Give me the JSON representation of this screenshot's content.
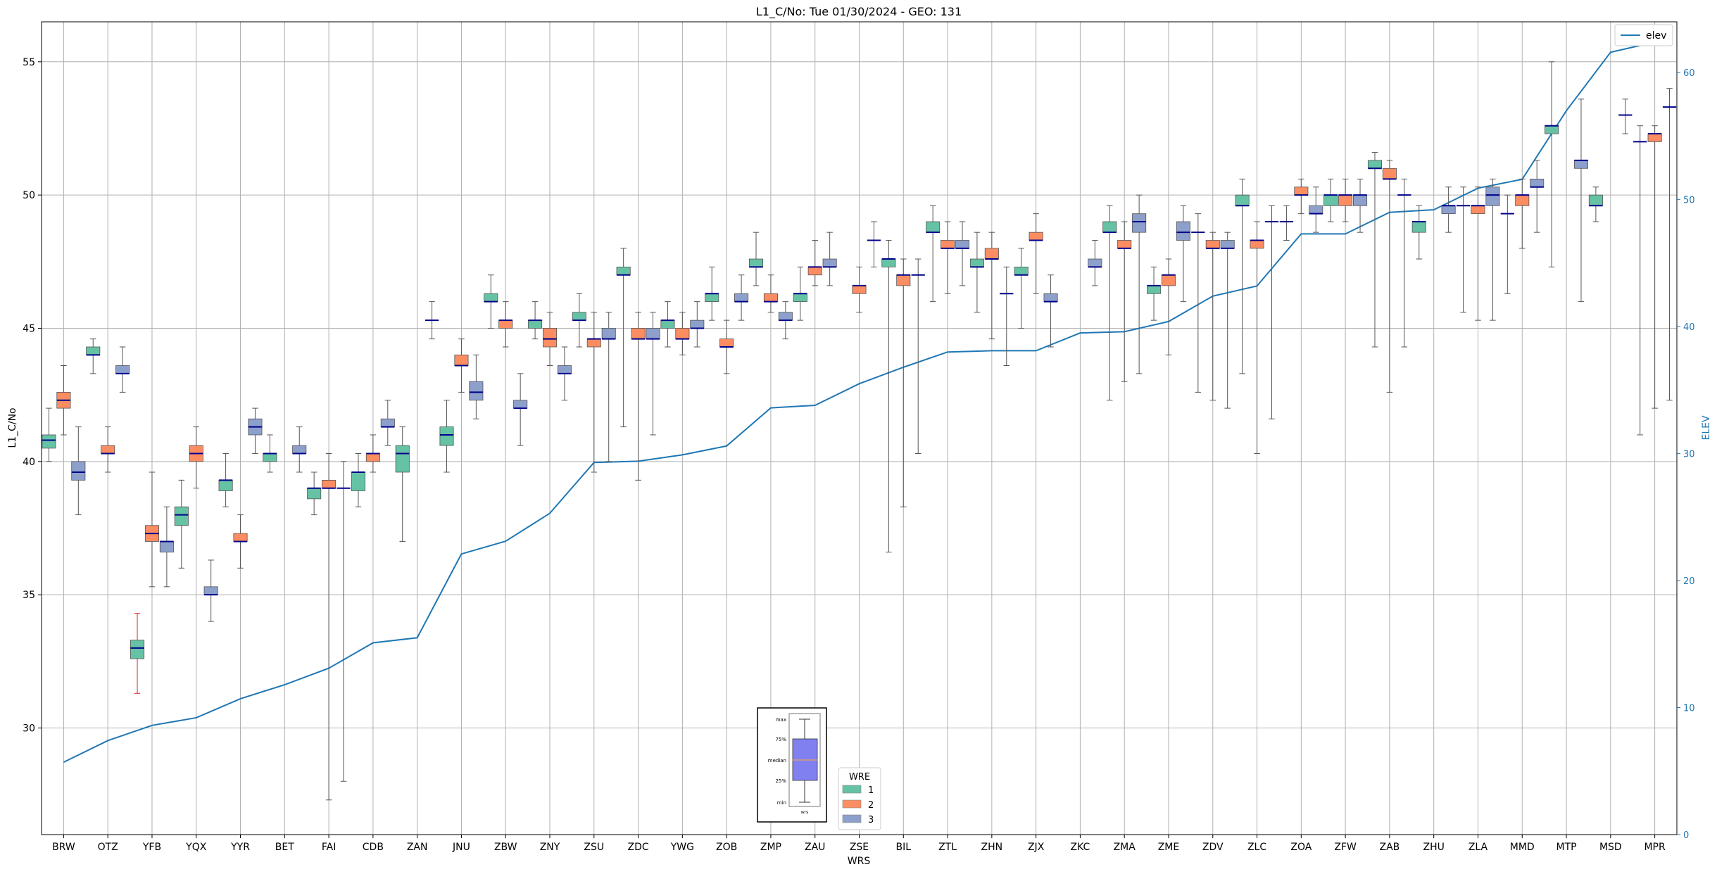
{
  "chart_data": {
    "type": "box",
    "title": "L1_C/No: Tue 01/30/2024 - GEO: 131",
    "xlabel": "WRS",
    "ylabel": "L1_C/No",
    "y2label": "ELEV",
    "ylim": [
      26.0,
      56.5
    ],
    "y2lim": [
      0,
      64
    ],
    "yticks": [
      30,
      35,
      40,
      45,
      50,
      55
    ],
    "y2ticks": [
      0,
      10,
      20,
      30,
      40,
      50,
      60
    ],
    "grid": true,
    "categories": [
      "BRW",
      "OTZ",
      "YFB",
      "YQX",
      "YYR",
      "BET",
      "FAI",
      "CDB",
      "ZAN",
      "JNU",
      "ZBW",
      "ZNY",
      "ZSU",
      "ZDC",
      "YWG",
      "ZOB",
      "ZMP",
      "ZAU",
      "ZSE",
      "BIL",
      "ZTL",
      "ZHN",
      "ZJX",
      "ZKC",
      "ZMA",
      "ZME",
      "ZDV",
      "ZLC",
      "ZOA",
      "ZFW",
      "ZAB",
      "ZHU",
      "ZLA",
      "MMD",
      "MTP",
      "MSD",
      "MPR"
    ],
    "series": [
      {
        "name": "1",
        "color": "#66c2a5",
        "boxes": [
          [
            40.0,
            40.5,
            40.8,
            41.0,
            42.0
          ],
          [
            43.3,
            44.0,
            44.0,
            44.3,
            44.6
          ],
          [
            31.3,
            32.6,
            33.0,
            33.3,
            34.3
          ],
          [
            36.0,
            37.6,
            38.0,
            38.3,
            39.3
          ],
          [
            38.3,
            38.9,
            39.3,
            39.3,
            40.3
          ],
          [
            39.6,
            40.0,
            40.3,
            40.3,
            41.0
          ],
          [
            38.0,
            38.6,
            39.0,
            39.0,
            39.6
          ],
          [
            38.3,
            38.9,
            39.6,
            39.6,
            40.3
          ],
          [
            37.0,
            39.6,
            40.3,
            40.6,
            41.3
          ],
          [
            39.6,
            40.6,
            41.0,
            41.3,
            42.3
          ],
          [
            45.0,
            46.0,
            46.0,
            46.3,
            47.0
          ],
          [
            44.6,
            45.0,
            45.3,
            45.3,
            46.0
          ],
          [
            44.3,
            45.3,
            45.3,
            45.6,
            46.3
          ],
          [
            41.3,
            47.0,
            47.0,
            47.3,
            48.0
          ],
          [
            44.3,
            45.0,
            45.3,
            45.3,
            46.0
          ],
          [
            45.3,
            46.0,
            46.3,
            46.3,
            47.3
          ],
          [
            46.6,
            47.3,
            47.3,
            47.6,
            48.6
          ],
          [
            45.3,
            46.0,
            46.3,
            46.3,
            47.3
          ],
          null,
          [
            36.6,
            47.3,
            47.6,
            47.6,
            48.3
          ],
          [
            46.0,
            48.6,
            48.6,
            49.0,
            49.6
          ],
          [
            45.6,
            47.3,
            47.3,
            47.6,
            48.6
          ],
          [
            45.0,
            47.0,
            47.0,
            47.3,
            48.0
          ],
          null,
          [
            42.3,
            48.6,
            48.6,
            49.0,
            49.6
          ],
          [
            45.3,
            46.3,
            46.6,
            46.6,
            47.3
          ],
          [
            42.6,
            48.6,
            48.6,
            48.6,
            49.3
          ],
          [
            43.3,
            49.6,
            49.6,
            50.0,
            50.6
          ],
          [
            48.3,
            49.0,
            49.0,
            49.0,
            49.6
          ],
          [
            49.0,
            49.6,
            50.0,
            50.0,
            50.6
          ],
          [
            44.3,
            51.0,
            51.0,
            51.3,
            51.6
          ],
          [
            47.6,
            48.6,
            49.0,
            49.0,
            49.6
          ],
          [
            45.6,
            49.6,
            49.6,
            49.6,
            50.3
          ],
          [
            46.3,
            49.3,
            49.3,
            49.3,
            50.0
          ],
          [
            47.3,
            52.3,
            52.6,
            52.6,
            55.0
          ],
          [
            49.0,
            49.6,
            49.6,
            50.0,
            50.3
          ],
          [
            41.0,
            52.0,
            52.0,
            52.0,
            52.6
          ]
        ]
      },
      {
        "name": "2",
        "color": "#fc8d62",
        "boxes": [
          [
            41.0,
            42.0,
            42.3,
            42.6,
            43.6
          ],
          [
            39.6,
            40.3,
            40.3,
            40.6,
            41.3
          ],
          [
            35.3,
            37.0,
            37.3,
            37.6,
            39.6
          ],
          [
            39.0,
            40.0,
            40.3,
            40.6,
            41.3
          ],
          [
            36.0,
            37.0,
            37.0,
            37.3,
            38.0
          ],
          null,
          [
            27.3,
            39.0,
            39.0,
            39.3,
            40.3
          ],
          [
            39.6,
            40.0,
            40.3,
            40.3,
            41.0
          ],
          null,
          [
            42.6,
            43.6,
            43.6,
            44.0,
            44.6
          ],
          [
            44.3,
            45.0,
            45.3,
            45.3,
            46.0
          ],
          [
            43.6,
            44.3,
            44.6,
            45.0,
            45.6
          ],
          [
            39.6,
            44.3,
            44.6,
            44.6,
            45.6
          ],
          [
            39.3,
            44.6,
            44.6,
            45.0,
            45.6
          ],
          [
            44.0,
            44.6,
            44.6,
            45.0,
            45.6
          ],
          [
            43.3,
            44.3,
            44.3,
            44.6,
            45.3
          ],
          [
            45.6,
            46.0,
            46.0,
            46.3,
            47.0
          ],
          [
            46.6,
            47.0,
            47.3,
            47.3,
            48.3
          ],
          [
            45.6,
            46.3,
            46.6,
            46.6,
            47.3
          ],
          [
            38.3,
            46.6,
            47.0,
            47.0,
            47.6
          ],
          [
            46.3,
            48.0,
            48.0,
            48.3,
            49.0
          ],
          [
            44.6,
            47.6,
            47.6,
            48.0,
            48.6
          ],
          [
            46.3,
            48.3,
            48.3,
            48.6,
            49.3
          ],
          null,
          [
            43.0,
            48.0,
            48.0,
            48.3,
            49.0
          ],
          [
            44.0,
            46.6,
            47.0,
            47.0,
            47.6
          ],
          [
            42.3,
            48.0,
            48.0,
            48.3,
            48.6
          ],
          [
            40.3,
            48.0,
            48.3,
            48.3,
            49.0
          ],
          [
            49.3,
            50.0,
            50.0,
            50.3,
            50.6
          ],
          [
            49.0,
            49.6,
            50.0,
            50.0,
            50.6
          ],
          [
            42.6,
            50.6,
            50.6,
            51.0,
            51.3
          ],
          null,
          [
            45.3,
            49.3,
            49.6,
            49.6,
            50.3
          ],
          [
            48.0,
            49.6,
            50.0,
            50.0,
            50.6
          ],
          null,
          null,
          [
            42.0,
            52.0,
            52.3,
            52.3,
            52.6
          ]
        ]
      },
      {
        "name": "3",
        "color": "#8da0cb",
        "boxes": [
          [
            38.0,
            39.3,
            39.6,
            40.0,
            41.3
          ],
          [
            42.6,
            43.3,
            43.3,
            43.6,
            44.3
          ],
          [
            35.3,
            36.6,
            37.0,
            37.0,
            38.3
          ],
          [
            34.0,
            35.0,
            35.0,
            35.3,
            36.3
          ],
          [
            40.3,
            41.0,
            41.3,
            41.6,
            42.0
          ],
          [
            39.6,
            40.3,
            40.3,
            40.6,
            41.3
          ],
          [
            28.0,
            39.0,
            39.0,
            39.0,
            40.0
          ],
          [
            40.6,
            41.3,
            41.3,
            41.6,
            42.3
          ],
          [
            44.6,
            45.3,
            45.3,
            45.3,
            46.0
          ],
          [
            41.6,
            42.3,
            42.6,
            43.0,
            44.0
          ],
          [
            40.6,
            42.0,
            42.0,
            42.3,
            43.3
          ],
          [
            42.3,
            43.3,
            43.3,
            43.6,
            44.3
          ],
          [
            40.0,
            44.6,
            44.6,
            45.0,
            45.6
          ],
          [
            41.0,
            44.6,
            44.6,
            45.0,
            45.6
          ],
          [
            44.3,
            45.0,
            45.0,
            45.3,
            46.0
          ],
          [
            45.3,
            46.0,
            46.0,
            46.3,
            47.0
          ],
          [
            44.6,
            45.3,
            45.3,
            45.6,
            46.0
          ],
          [
            46.6,
            47.3,
            47.3,
            47.6,
            48.6
          ],
          [
            47.3,
            48.3,
            48.3,
            48.3,
            49.0
          ],
          [
            40.3,
            47.0,
            47.0,
            47.0,
            47.6
          ],
          [
            46.6,
            48.0,
            48.0,
            48.3,
            49.0
          ],
          [
            43.6,
            46.3,
            46.3,
            46.3,
            47.3
          ],
          [
            44.3,
            46.0,
            46.0,
            46.3,
            47.0
          ],
          [
            46.6,
            47.3,
            47.3,
            47.6,
            48.3
          ],
          [
            43.3,
            48.6,
            49.0,
            49.3,
            50.0
          ],
          [
            46.0,
            48.3,
            48.6,
            49.0,
            49.6
          ],
          [
            42.0,
            48.0,
            48.0,
            48.3,
            48.6
          ],
          [
            41.6,
            49.0,
            49.0,
            49.0,
            49.6
          ],
          [
            48.6,
            49.3,
            49.3,
            49.6,
            50.3
          ],
          [
            48.6,
            49.6,
            50.0,
            50.0,
            50.6
          ],
          [
            44.3,
            50.0,
            50.0,
            50.0,
            50.6
          ],
          [
            48.6,
            49.3,
            49.6,
            49.6,
            50.3
          ],
          [
            45.3,
            49.6,
            50.0,
            50.3,
            50.6
          ],
          [
            48.6,
            50.3,
            50.3,
            50.6,
            51.3
          ],
          [
            46.0,
            51.0,
            51.3,
            51.3,
            53.6
          ],
          [
            52.3,
            53.0,
            53.0,
            53.0,
            53.6
          ],
          [
            42.3,
            53.3,
            53.3,
            53.3,
            54.0
          ]
        ]
      }
    ],
    "elev": {
      "name": "elev",
      "color": "#1f77b4",
      "values": [
        5.7,
        7.4,
        8.6,
        9.2,
        10.7,
        11.8,
        13.1,
        15.1,
        15.5,
        22.1,
        23.1,
        25.3,
        29.3,
        29.4,
        29.9,
        30.6,
        33.6,
        33.8,
        35.5,
        36.8,
        38.0,
        38.1,
        38.1,
        39.5,
        39.6,
        40.4,
        42.4,
        43.2,
        47.3,
        47.3,
        49.0,
        49.2,
        50.9,
        51.6,
        57.0,
        61.6,
        62.4
      ]
    },
    "legend": {
      "title": "WRE",
      "entries": [
        "1",
        "2",
        "3"
      ]
    },
    "inset": {
      "labels": [
        "max",
        "75%",
        "median",
        "25%",
        "min"
      ],
      "xlabel": "wrs"
    }
  }
}
